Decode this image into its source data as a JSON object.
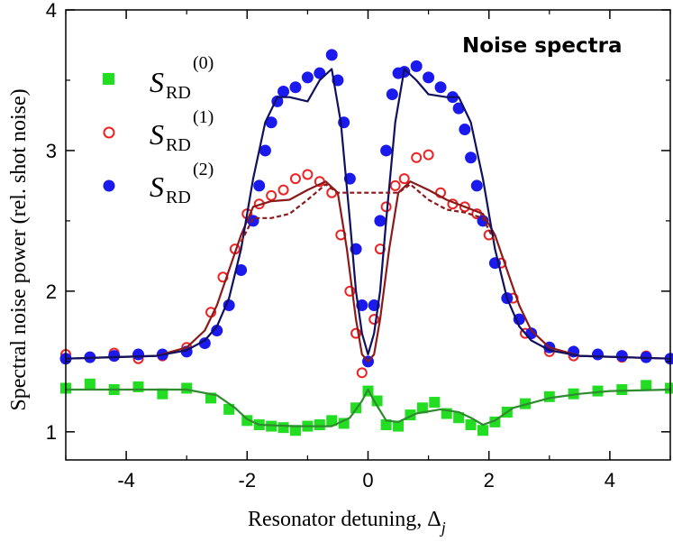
{
  "chart_data": {
    "type": "scatter",
    "title": "Noise spectra",
    "xlabel": "Resonator detuning, Δ",
    "xlabel_sub": "j",
    "ylabel": "Spectral noise power (rel. shot noise)",
    "xlim": [
      -5,
      5
    ],
    "ylim": [
      0.8,
      4.0
    ],
    "xticks": [
      -4,
      -2,
      0,
      2,
      4
    ],
    "xtick_labels": [
      "-4",
      "-2",
      "0",
      "2",
      "4"
    ],
    "yticks": [
      1,
      2,
      3,
      4
    ],
    "ytick_labels": [
      "1",
      "2",
      "3",
      "4"
    ],
    "grid": false,
    "legend_position": "top-left",
    "series": [
      {
        "name_main": "S",
        "name_sub": "RD",
        "name_sup": "(0)",
        "marker": "square",
        "color": "#22dd22",
        "x": [
          -5,
          -4.6,
          -4.2,
          -3.8,
          -3.4,
          -3.0,
          -2.6,
          -2.3,
          -2.0,
          -1.8,
          -1.6,
          -1.4,
          -1.2,
          -1.0,
          -0.8,
          -0.6,
          -0.4,
          -0.2,
          0.0,
          0.15,
          0.3,
          0.5,
          0.7,
          0.9,
          1.1,
          1.3,
          1.5,
          1.7,
          1.9,
          2.1,
          2.3,
          2.6,
          3.0,
          3.4,
          3.8,
          4.2,
          4.6,
          5.0
        ],
        "y": [
          1.31,
          1.34,
          1.3,
          1.32,
          1.27,
          1.31,
          1.24,
          1.16,
          1.08,
          1.05,
          1.04,
          1.03,
          1.01,
          1.04,
          1.05,
          1.08,
          1.06,
          1.17,
          1.29,
          1.22,
          1.05,
          1.04,
          1.12,
          1.17,
          1.21,
          1.13,
          1.1,
          1.05,
          1.01,
          1.07,
          1.14,
          1.2,
          1.25,
          1.27,
          1.29,
          1.3,
          1.33,
          1.31
        ]
      },
      {
        "name_main": "S",
        "name_sub": "RD",
        "name_sup": "(1)",
        "marker": "open-circle",
        "color": "#ee2222",
        "x": [
          -5,
          -4.6,
          -4.2,
          -3.8,
          -3.4,
          -3.0,
          -2.6,
          -2.4,
          -2.2,
          -2.0,
          -1.8,
          -1.6,
          -1.4,
          -1.2,
          -1.0,
          -0.8,
          -0.6,
          -0.45,
          -0.3,
          -0.2,
          -0.1,
          0.0,
          0.1,
          0.2,
          0.3,
          0.45,
          0.6,
          0.8,
          1.0,
          1.2,
          1.4,
          1.6,
          1.8,
          2.0,
          2.2,
          2.4,
          2.6,
          3.0,
          3.4,
          3.8,
          4.2,
          4.6,
          5.0
        ],
        "y": [
          1.55,
          1.53,
          1.56,
          1.52,
          1.54,
          1.6,
          1.85,
          2.1,
          2.3,
          2.55,
          2.62,
          2.68,
          2.72,
          2.8,
          2.83,
          2.78,
          2.7,
          2.4,
          2.0,
          1.7,
          1.42,
          1.5,
          1.8,
          2.3,
          2.6,
          2.75,
          2.8,
          2.95,
          2.97,
          2.7,
          2.62,
          2.6,
          2.55,
          2.4,
          2.2,
          1.95,
          1.7,
          1.57,
          1.54,
          1.55,
          1.53,
          1.54,
          1.52
        ]
      },
      {
        "name_main": "S",
        "name_sub": "RD",
        "name_sup": "(2)",
        "marker": "filled-circle",
        "color": "#1a1aee",
        "x": [
          -5,
          -4.6,
          -4.2,
          -3.8,
          -3.4,
          -3.0,
          -2.7,
          -2.5,
          -2.3,
          -2.1,
          -1.9,
          -1.8,
          -1.7,
          -1.6,
          -1.5,
          -1.4,
          -1.2,
          -1.0,
          -0.8,
          -0.6,
          -0.5,
          -0.4,
          -0.3,
          -0.2,
          -0.1,
          0.0,
          0.1,
          0.2,
          0.3,
          0.4,
          0.5,
          0.6,
          0.8,
          1.0,
          1.2,
          1.4,
          1.5,
          1.6,
          1.7,
          1.8,
          1.9,
          2.1,
          2.3,
          2.5,
          2.7,
          3.0,
          3.4,
          3.8,
          4.2,
          4.6,
          5.0
        ],
        "y": [
          1.52,
          1.53,
          1.54,
          1.55,
          1.55,
          1.57,
          1.63,
          1.72,
          1.9,
          2.15,
          2.5,
          2.75,
          3.0,
          3.2,
          3.35,
          3.42,
          3.45,
          3.52,
          3.55,
          3.68,
          3.5,
          3.2,
          2.8,
          2.3,
          1.9,
          1.5,
          1.9,
          2.5,
          3.0,
          3.4,
          3.55,
          3.56,
          3.6,
          3.52,
          3.45,
          3.38,
          3.3,
          3.15,
          2.95,
          2.75,
          2.5,
          2.2,
          1.95,
          1.8,
          1.7,
          1.6,
          1.57,
          1.55,
          1.54,
          1.53,
          1.52
        ]
      }
    ],
    "fits": [
      {
        "color": "#2e8b2e",
        "style": "solid",
        "x": [
          -5,
          -3.0,
          -2.5,
          -2.2,
          -2.0,
          -1.8,
          -1.2,
          -0.6,
          -0.3,
          -0.1,
          0.0,
          0.1,
          0.3,
          0.5,
          0.8,
          1.2,
          1.5,
          1.7,
          1.9,
          2.1,
          2.4,
          3.0,
          3.5,
          4.0,
          5.0
        ],
        "y": [
          1.3,
          1.3,
          1.26,
          1.17,
          1.09,
          1.05,
          1.04,
          1.04,
          1.1,
          1.22,
          1.3,
          1.22,
          1.08,
          1.07,
          1.13,
          1.16,
          1.14,
          1.1,
          1.05,
          1.08,
          1.17,
          1.24,
          1.27,
          1.29,
          1.3
        ]
      },
      {
        "color": "#8b1a1a",
        "style": "solid",
        "x": [
          -5,
          -3.5,
          -3.0,
          -2.7,
          -2.5,
          -2.3,
          -2.1,
          -1.9,
          -1.6,
          -1.3,
          -1.0,
          -0.7,
          -0.5,
          -0.35,
          -0.2,
          -0.1,
          0.0,
          0.1,
          0.2,
          0.35,
          0.5,
          0.7,
          1.0,
          1.3,
          1.6,
          1.9,
          2.1,
          2.3,
          2.5,
          2.7,
          3.0,
          3.5,
          5.0
        ],
        "y": [
          1.52,
          1.54,
          1.6,
          1.72,
          1.9,
          2.15,
          2.4,
          2.6,
          2.64,
          2.65,
          2.72,
          2.78,
          2.7,
          2.3,
          1.8,
          1.55,
          1.5,
          1.55,
          1.8,
          2.3,
          2.7,
          2.78,
          2.72,
          2.65,
          2.6,
          2.55,
          2.4,
          2.15,
          1.9,
          1.72,
          1.6,
          1.54,
          1.52
        ]
      },
      {
        "color": "#101060",
        "style": "solid",
        "x": [
          -5,
          -3.5,
          -3.0,
          -2.7,
          -2.5,
          -2.3,
          -2.1,
          -1.9,
          -1.7,
          -1.5,
          -1.3,
          -1.0,
          -0.8,
          -0.6,
          -0.45,
          -0.3,
          -0.2,
          -0.1,
          0.0,
          0.1,
          0.2,
          0.3,
          0.45,
          0.6,
          0.8,
          1.0,
          1.3,
          1.5,
          1.7,
          1.9,
          2.1,
          2.3,
          2.5,
          2.7,
          3.0,
          3.5,
          5.0
        ],
        "y": [
          1.52,
          1.54,
          1.58,
          1.65,
          1.75,
          1.95,
          2.3,
          2.8,
          3.2,
          3.38,
          3.38,
          3.35,
          3.5,
          3.58,
          3.2,
          2.5,
          2.0,
          1.7,
          1.55,
          1.7,
          2.0,
          2.5,
          3.2,
          3.58,
          3.5,
          3.4,
          3.38,
          3.38,
          3.2,
          2.8,
          2.3,
          1.95,
          1.75,
          1.65,
          1.58,
          1.54,
          1.52
        ]
      },
      {
        "color": "#8b1a1a",
        "style": "dashed",
        "x": [
          -2.1,
          -1.9,
          -1.6,
          -1.3,
          -1.0,
          -0.7,
          -0.5,
          0.5,
          0.7,
          1.0,
          1.3,
          1.6,
          1.9,
          2.1
        ],
        "y": [
          2.35,
          2.52,
          2.52,
          2.55,
          2.65,
          2.76,
          2.7,
          2.7,
          2.76,
          2.65,
          2.58,
          2.56,
          2.52,
          2.35
        ]
      }
    ]
  }
}
